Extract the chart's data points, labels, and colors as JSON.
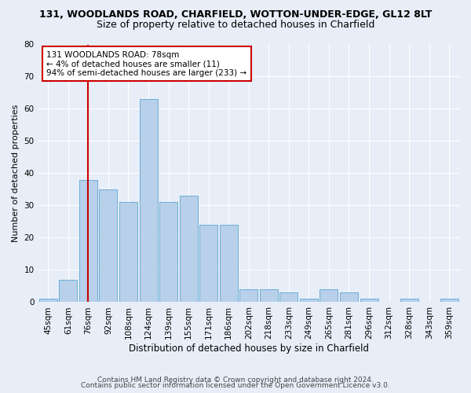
{
  "title": "131, WOODLANDS ROAD, CHARFIELD, WOTTON-UNDER-EDGE, GL12 8LT",
  "subtitle": "Size of property relative to detached houses in Charfield",
  "xlabel": "Distribution of detached houses by size in Charfield",
  "ylabel": "Number of detached properties",
  "bar_color": "#b8d0ea",
  "bar_edge_color": "#6aaed6",
  "background_color": "#e8eef8",
  "fig_background_color": "#e8eef8",
  "grid_color": "#ffffff",
  "categories": [
    "45sqm",
    "61sqm",
    "76sqm",
    "92sqm",
    "108sqm",
    "124sqm",
    "139sqm",
    "155sqm",
    "171sqm",
    "186sqm",
    "202sqm",
    "218sqm",
    "233sqm",
    "249sqm",
    "265sqm",
    "281sqm",
    "296sqm",
    "312sqm",
    "328sqm",
    "343sqm",
    "359sqm"
  ],
  "values": [
    1,
    7,
    38,
    35,
    31,
    63,
    31,
    33,
    24,
    24,
    4,
    4,
    3,
    1,
    4,
    3,
    1,
    0,
    1,
    0,
    1
  ],
  "ylim": [
    0,
    80
  ],
  "yticks": [
    0,
    10,
    20,
    30,
    40,
    50,
    60,
    70,
    80
  ],
  "property_line_color": "#cc0000",
  "annotation_text": "131 WOODLANDS ROAD: 78sqm\n← 4% of detached houses are smaller (11)\n94% of semi-detached houses are larger (233) →",
  "annotation_box_color": "#ffffff",
  "annotation_box_edge": "#cc0000",
  "footer_line1": "Contains HM Land Registry data © Crown copyright and database right 2024.",
  "footer_line2": "Contains public sector information licensed under the Open Government Licence v3.0.",
  "title_fontsize": 9,
  "subtitle_fontsize": 9,
  "ylabel_fontsize": 8,
  "xlabel_fontsize": 8.5,
  "tick_fontsize": 7.5,
  "annotation_fontsize": 7.5,
  "footer_fontsize": 6.5
}
